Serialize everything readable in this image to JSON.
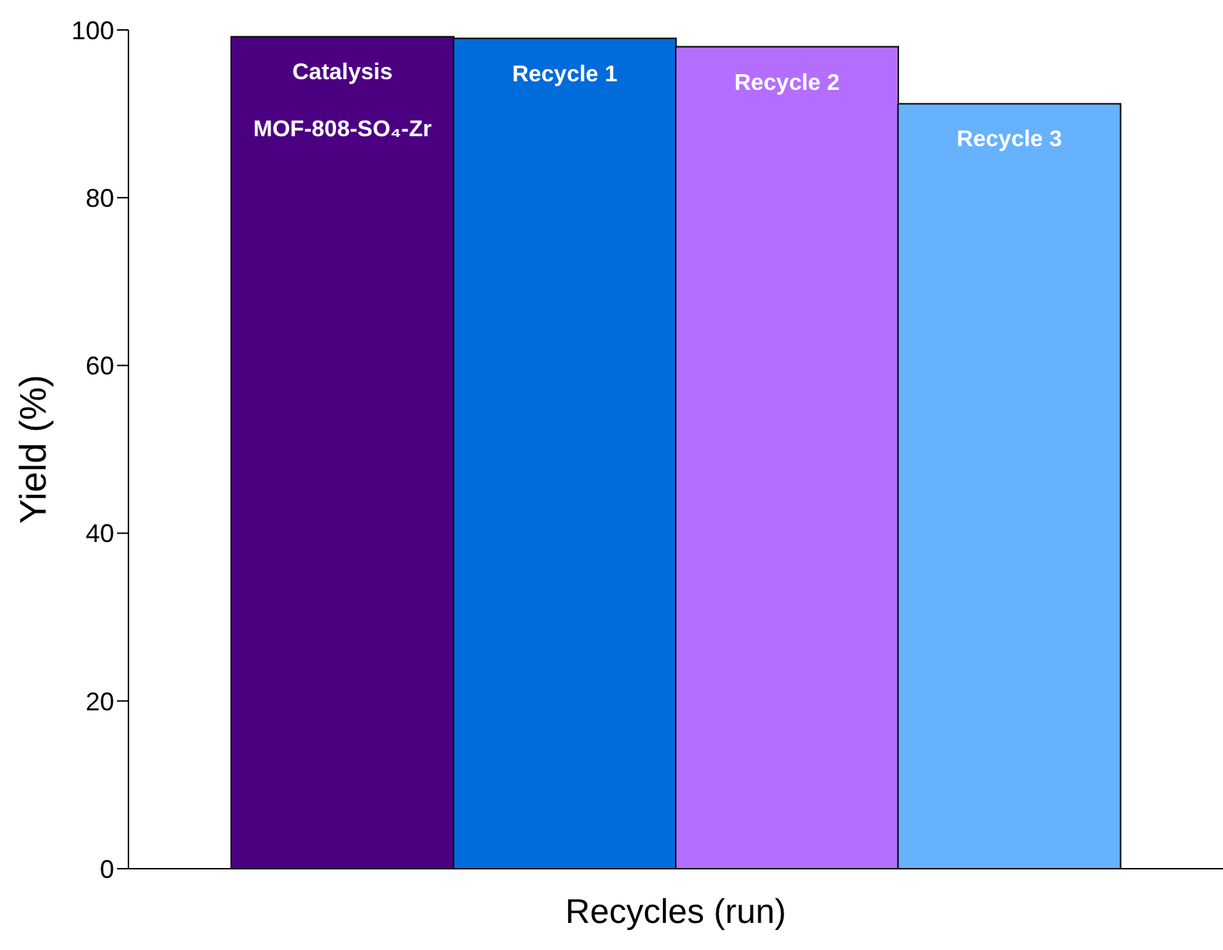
{
  "chart_data": {
    "type": "bar",
    "xlabel": "Recycles (run)",
    "ylabel": "Yield (%)",
    "categories": [
      "Catalysis\nMOF-808-SO₄-Zr",
      "Recycle 1",
      "Recycle 2",
      "Recycle 3"
    ],
    "values": [
      99.2,
      99.0,
      98.0,
      91.2
    ],
    "colors": [
      "#4b0082",
      "#006bdb",
      "#b46eff",
      "#66b2ff"
    ],
    "ylim": [
      0,
      100
    ],
    "yticks": [
      0,
      20,
      40,
      60,
      80,
      100
    ],
    "grid": false,
    "legend": false
  }
}
